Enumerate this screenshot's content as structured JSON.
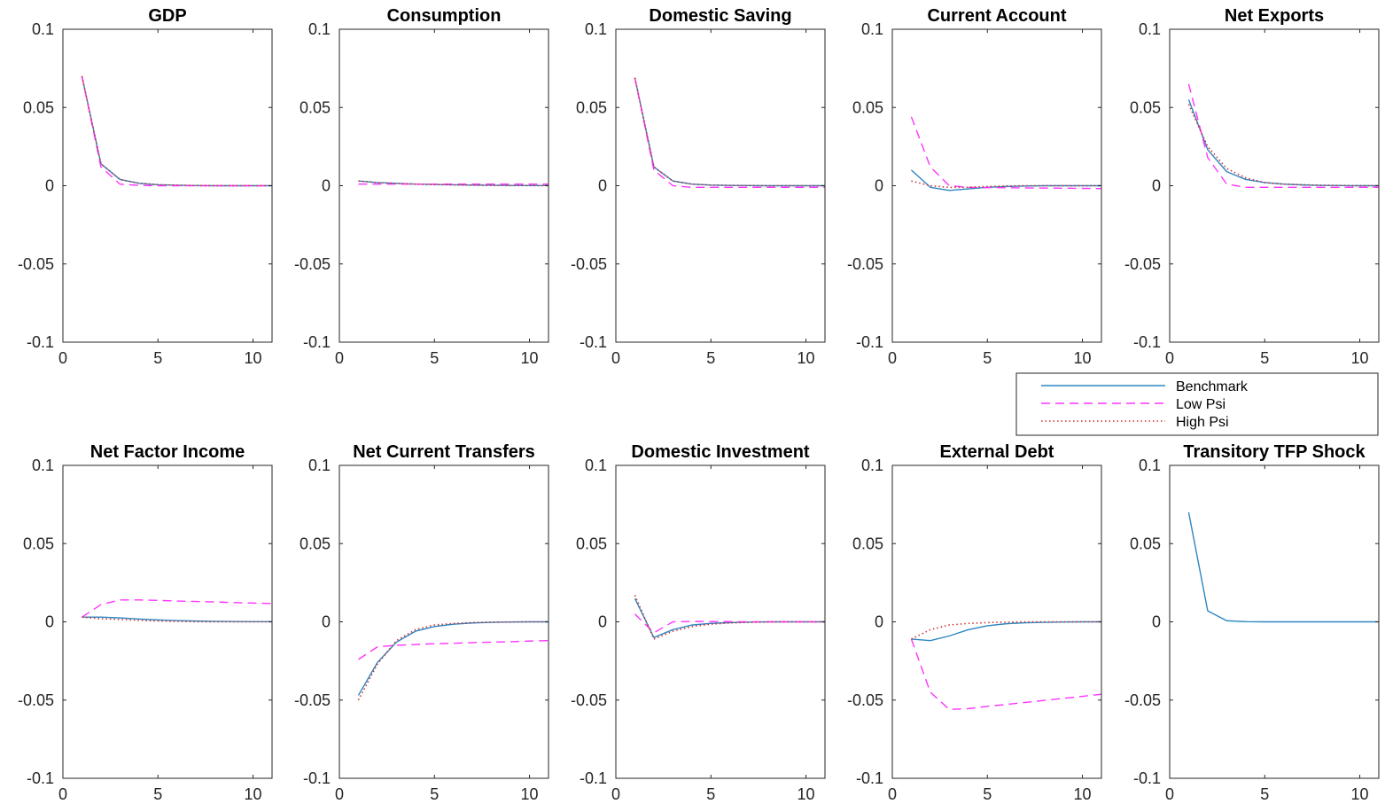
{
  "colors": {
    "benchmark": "#2e86c1",
    "low_psi": "#ff33ff",
    "high_psi": "#cc3333",
    "axis": "#262626"
  },
  "legend": {
    "placement": "between-rows-right",
    "entries": [
      {
        "label": "Benchmark",
        "style": "solid",
        "color": "#2e86c1"
      },
      {
        "label": "Low Psi",
        "style": "dashed",
        "color": "#ff33ff"
      },
      {
        "label": "High Psi",
        "style": "dotted",
        "color": "#cc3333"
      }
    ]
  },
  "chart_data": [
    {
      "type": "line",
      "title": "GDP",
      "xlim": [
        0,
        11
      ],
      "ylim": [
        -0.1,
        0.1
      ],
      "xticks": [
        "0",
        "5",
        "10"
      ],
      "yticks": [
        "0.1",
        "0.05",
        "0",
        "-0.05",
        "-0.1"
      ],
      "x": [
        1,
        2,
        3,
        4,
        5,
        6,
        7,
        8,
        9,
        10,
        11
      ],
      "series": [
        {
          "name": "Benchmark",
          "values": [
            0.07,
            0.014,
            0.004,
            0.0015,
            0.0006,
            0.0003,
            0.0001,
            0,
            0,
            0,
            0
          ]
        },
        {
          "name": "Low Psi",
          "values": [
            0.07,
            0.012,
            0.001,
            0.0002,
            0,
            0,
            0,
            0,
            0,
            0,
            0
          ]
        },
        {
          "name": "High Psi",
          "values": [
            0.07,
            0.014,
            0.004,
            0.0016,
            0.0007,
            0.0003,
            0.0001,
            0,
            0,
            0,
            0
          ]
        }
      ]
    },
    {
      "type": "line",
      "title": "Consumption",
      "xlim": [
        0,
        11
      ],
      "ylim": [
        -0.1,
        0.1
      ],
      "xticks": [
        "0",
        "5",
        "10"
      ],
      "yticks": [
        "0.1",
        "0.05",
        "0",
        "-0.05",
        "-0.1"
      ],
      "x": [
        1,
        2,
        3,
        4,
        5,
        6,
        7,
        8,
        9,
        10,
        11
      ],
      "series": [
        {
          "name": "Benchmark",
          "values": [
            0.003,
            0.002,
            0.0015,
            0.001,
            0.0008,
            0.0006,
            0.0004,
            0.0003,
            0.0002,
            0.0001,
            0.0001
          ]
        },
        {
          "name": "Low Psi",
          "values": [
            0.001,
            0.001,
            0.001,
            0.001,
            0.001,
            0.001,
            0.001,
            0.001,
            0.001,
            0.001,
            0.001
          ]
        },
        {
          "name": "High Psi",
          "values": [
            0.003,
            0.002,
            0.0015,
            0.001,
            0.0007,
            0.0005,
            0.0003,
            0.0002,
            0.0001,
            0.0001,
            0
          ]
        }
      ]
    },
    {
      "type": "line",
      "title": "Domestic Saving",
      "xlim": [
        0,
        11
      ],
      "ylim": [
        -0.1,
        0.1
      ],
      "xticks": [
        "0",
        "5",
        "10"
      ],
      "yticks": [
        "0.1",
        "0.05",
        "0",
        "-0.05",
        "-0.1"
      ],
      "x": [
        1,
        2,
        3,
        4,
        5,
        6,
        7,
        8,
        9,
        10,
        11
      ],
      "series": [
        {
          "name": "Benchmark",
          "values": [
            0.069,
            0.012,
            0.003,
            0.001,
            0.0004,
            0.0002,
            0.0001,
            0,
            0,
            0,
            0
          ]
        },
        {
          "name": "Low Psi",
          "values": [
            0.069,
            0.01,
            0.0,
            -0.001,
            -0.001,
            -0.001,
            -0.001,
            -0.001,
            -0.001,
            -0.001,
            -0.001
          ]
        },
        {
          "name": "High Psi",
          "values": [
            0.069,
            0.012,
            0.003,
            0.001,
            0.0004,
            0.0002,
            0.0001,
            0,
            0,
            0,
            0
          ]
        }
      ]
    },
    {
      "type": "line",
      "title": "Current Account",
      "xlim": [
        0,
        11
      ],
      "ylim": [
        -0.1,
        0.1
      ],
      "xticks": [
        "0",
        "5",
        "10"
      ],
      "yticks": [
        "0.1",
        "0.05",
        "0",
        "-0.05",
        "-0.1"
      ],
      "x": [
        1,
        2,
        3,
        4,
        5,
        6,
        7,
        8,
        9,
        10,
        11
      ],
      "series": [
        {
          "name": "Benchmark",
          "values": [
            0.01,
            -0.001,
            -0.003,
            -0.002,
            -0.001,
            -0.0005,
            -0.0002,
            0,
            0,
            0,
            0
          ]
        },
        {
          "name": "Low Psi",
          "values": [
            0.044,
            0.012,
            0.0,
            -0.001,
            -0.0012,
            -0.0013,
            -0.0014,
            -0.0015,
            -0.0016,
            -0.0017,
            -0.0018
          ]
        },
        {
          "name": "High Psi",
          "values": [
            0.003,
            0.0,
            -0.001,
            -0.001,
            -0.0005,
            -0.0002,
            0,
            0,
            0,
            0,
            0
          ]
        }
      ]
    },
    {
      "type": "line",
      "title": "Net Exports",
      "xlim": [
        0,
        11
      ],
      "ylim": [
        -0.1,
        0.1
      ],
      "xticks": [
        "0",
        "5",
        "10"
      ],
      "yticks": [
        "0.1",
        "0.05",
        "0",
        "-0.05",
        "-0.1"
      ],
      "x": [
        1,
        2,
        3,
        4,
        5,
        6,
        7,
        8,
        9,
        10,
        11
      ],
      "series": [
        {
          "name": "Benchmark",
          "values": [
            0.055,
            0.023,
            0.009,
            0.004,
            0.002,
            0.001,
            0.0005,
            0.0002,
            0.0001,
            0,
            0
          ]
        },
        {
          "name": "Low Psi",
          "values": [
            0.065,
            0.018,
            0.001,
            -0.001,
            -0.001,
            -0.001,
            -0.001,
            -0.001,
            -0.001,
            -0.001,
            -0.001
          ]
        },
        {
          "name": "High Psi",
          "values": [
            0.052,
            0.025,
            0.011,
            0.005,
            0.002,
            0.001,
            0.0006,
            0.0003,
            0.0001,
            0,
            0
          ]
        }
      ]
    },
    {
      "type": "line",
      "title": "Net Factor Income",
      "xlim": [
        0,
        11
      ],
      "ylim": [
        -0.1,
        0.1
      ],
      "xticks": [
        "0",
        "5",
        "10"
      ],
      "yticks": [
        "0.1",
        "0.05",
        "0",
        "-0.05",
        "-0.1"
      ],
      "x": [
        1,
        2,
        3,
        4,
        5,
        6,
        7,
        8,
        9,
        10,
        11
      ],
      "series": [
        {
          "name": "Benchmark",
          "values": [
            0.003,
            0.003,
            0.0025,
            0.0018,
            0.0012,
            0.0008,
            0.0005,
            0.0003,
            0.0002,
            0.0001,
            0.0001
          ]
        },
        {
          "name": "Low Psi",
          "values": [
            0.003,
            0.011,
            0.014,
            0.014,
            0.0137,
            0.0133,
            0.013,
            0.0127,
            0.0123,
            0.012,
            0.0117
          ]
        },
        {
          "name": "High Psi",
          "values": [
            0.003,
            0.002,
            0.0015,
            0.001,
            0.0005,
            0.0003,
            0.0001,
            0,
            0,
            0,
            0
          ]
        }
      ]
    },
    {
      "type": "line",
      "title": "Net Current Transfers",
      "xlim": [
        0,
        11
      ],
      "ylim": [
        -0.1,
        0.1
      ],
      "xticks": [
        "0",
        "5",
        "10"
      ],
      "yticks": [
        "0.1",
        "0.05",
        "0",
        "-0.05",
        "-0.1"
      ],
      "x": [
        1,
        2,
        3,
        4,
        5,
        6,
        7,
        8,
        9,
        10,
        11
      ],
      "series": [
        {
          "name": "Benchmark",
          "values": [
            -0.047,
            -0.026,
            -0.013,
            -0.006,
            -0.003,
            -0.0015,
            -0.0007,
            -0.0003,
            -0.0001,
            0,
            0
          ]
        },
        {
          "name": "Low Psi",
          "values": [
            -0.024,
            -0.016,
            -0.015,
            -0.0145,
            -0.014,
            -0.0137,
            -0.0133,
            -0.013,
            -0.0127,
            -0.0123,
            -0.012
          ]
        },
        {
          "name": "High Psi",
          "values": [
            -0.05,
            -0.027,
            -0.012,
            -0.005,
            -0.002,
            -0.001,
            -0.0005,
            -0.0002,
            -0.0001,
            0,
            0
          ]
        }
      ]
    },
    {
      "type": "line",
      "title": "Domestic Investment",
      "xlim": [
        0,
        11
      ],
      "ylim": [
        -0.1,
        0.1
      ],
      "xticks": [
        "0",
        "5",
        "10"
      ],
      "yticks": [
        "0.1",
        "0.05",
        "0",
        "-0.05",
        "-0.1"
      ],
      "x": [
        1,
        2,
        3,
        4,
        5,
        6,
        7,
        8,
        9,
        10,
        11
      ],
      "series": [
        {
          "name": "Benchmark",
          "values": [
            0.015,
            -0.01,
            -0.005,
            -0.002,
            -0.001,
            -0.0005,
            -0.0002,
            0,
            0,
            0,
            0
          ]
        },
        {
          "name": "Low Psi",
          "values": [
            0.005,
            -0.007,
            0.0,
            0.0003,
            0.0002,
            0.0001,
            0,
            0,
            0,
            0,
            0
          ]
        },
        {
          "name": "High Psi",
          "values": [
            0.017,
            -0.011,
            -0.006,
            -0.003,
            -0.0015,
            -0.0007,
            -0.0003,
            -0.0001,
            0,
            0,
            0
          ]
        }
      ]
    },
    {
      "type": "line",
      "title": "External Debt",
      "xlim": [
        0,
        11
      ],
      "ylim": [
        -0.1,
        0.1
      ],
      "xticks": [
        "0",
        "5",
        "10"
      ],
      "yticks": [
        "0.1",
        "0.05",
        "0",
        "-0.05",
        "-0.1"
      ],
      "x": [
        1,
        2,
        3,
        4,
        5,
        6,
        7,
        8,
        9,
        10,
        11
      ],
      "series": [
        {
          "name": "Benchmark",
          "values": [
            -0.011,
            -0.012,
            -0.009,
            -0.005,
            -0.0025,
            -0.0012,
            -0.0006,
            -0.0003,
            -0.0001,
            0,
            0
          ]
        },
        {
          "name": "Low Psi",
          "values": [
            -0.011,
            -0.045,
            -0.056,
            -0.0555,
            -0.054,
            -0.0528,
            -0.0515,
            -0.0502,
            -0.0489,
            -0.0476,
            -0.0463
          ]
        },
        {
          "name": "High Psi",
          "values": [
            -0.011,
            -0.005,
            -0.002,
            -0.001,
            -0.0005,
            -0.0002,
            0,
            0,
            0,
            0,
            0
          ]
        }
      ]
    },
    {
      "type": "line",
      "title": "Transitory TFP Shock",
      "xlim": [
        0,
        11
      ],
      "ylim": [
        -0.1,
        0.1
      ],
      "xticks": [
        "0",
        "5",
        "10"
      ],
      "yticks": [
        "0.1",
        "0.05",
        "0",
        "-0.05",
        "-0.1"
      ],
      "x": [
        1,
        2,
        3,
        4,
        5,
        6,
        7,
        8,
        9,
        10,
        11
      ],
      "series": [
        {
          "name": "Benchmark",
          "values": [
            0.07,
            0.007,
            0.0007,
            0.0001,
            0,
            0,
            0,
            0,
            0,
            0,
            0
          ]
        }
      ]
    }
  ]
}
